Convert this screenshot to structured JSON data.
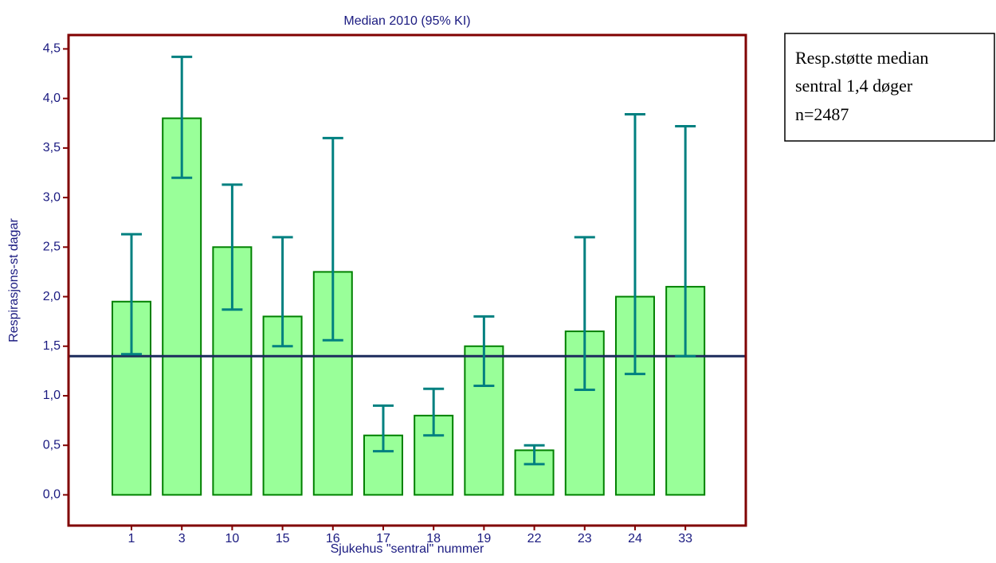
{
  "chart_data": {
    "type": "bar",
    "title": "Median 2010 (95% KI)",
    "x_label": "Sjukehus \"sentral\" nummer",
    "y_label": "Respirasjons-st dagar",
    "categories": [
      "1",
      "3",
      "10",
      "15",
      "16",
      "17",
      "18",
      "19",
      "22",
      "23",
      "24",
      "33"
    ],
    "values": [
      1.95,
      3.8,
      2.5,
      1.8,
      2.25,
      0.6,
      0.8,
      1.5,
      0.45,
      1.65,
      2.0,
      2.1
    ],
    "ci_low": [
      1.42,
      3.2,
      1.87,
      1.5,
      1.56,
      0.44,
      0.6,
      1.1,
      0.31,
      1.06,
      1.22,
      1.4
    ],
    "ci_high": [
      2.63,
      4.42,
      3.13,
      2.6,
      3.6,
      0.9,
      1.07,
      1.8,
      0.5,
      2.6,
      3.84,
      3.72
    ],
    "color": "#99ff99",
    "edge_color": "#008000",
    "error_color": "#008080",
    "reference_line": 1.4,
    "reference_color": "#1c2b5c",
    "ylim": [
      -0.31,
      4.64
    ],
    "yticks": [
      {
        "value": 0,
        "label": "0,0"
      },
      {
        "value": 0.5,
        "label": "0,5"
      },
      {
        "value": 1,
        "label": "1,0"
      },
      {
        "value": 1.5,
        "label": "1,5"
      },
      {
        "value": 2,
        "label": "2,0"
      },
      {
        "value": 2.5,
        "label": "2,5"
      },
      {
        "value": 3,
        "label": "3,0"
      },
      {
        "value": 3.5,
        "label": "3,5"
      },
      {
        "value": 4,
        "label": "4,0"
      },
      {
        "value": 4.5,
        "label": "4,5"
      }
    ],
    "annotation": [
      "Resp.støtte median",
      "sentral 1,4 døger",
      "n=2487"
    ]
  }
}
